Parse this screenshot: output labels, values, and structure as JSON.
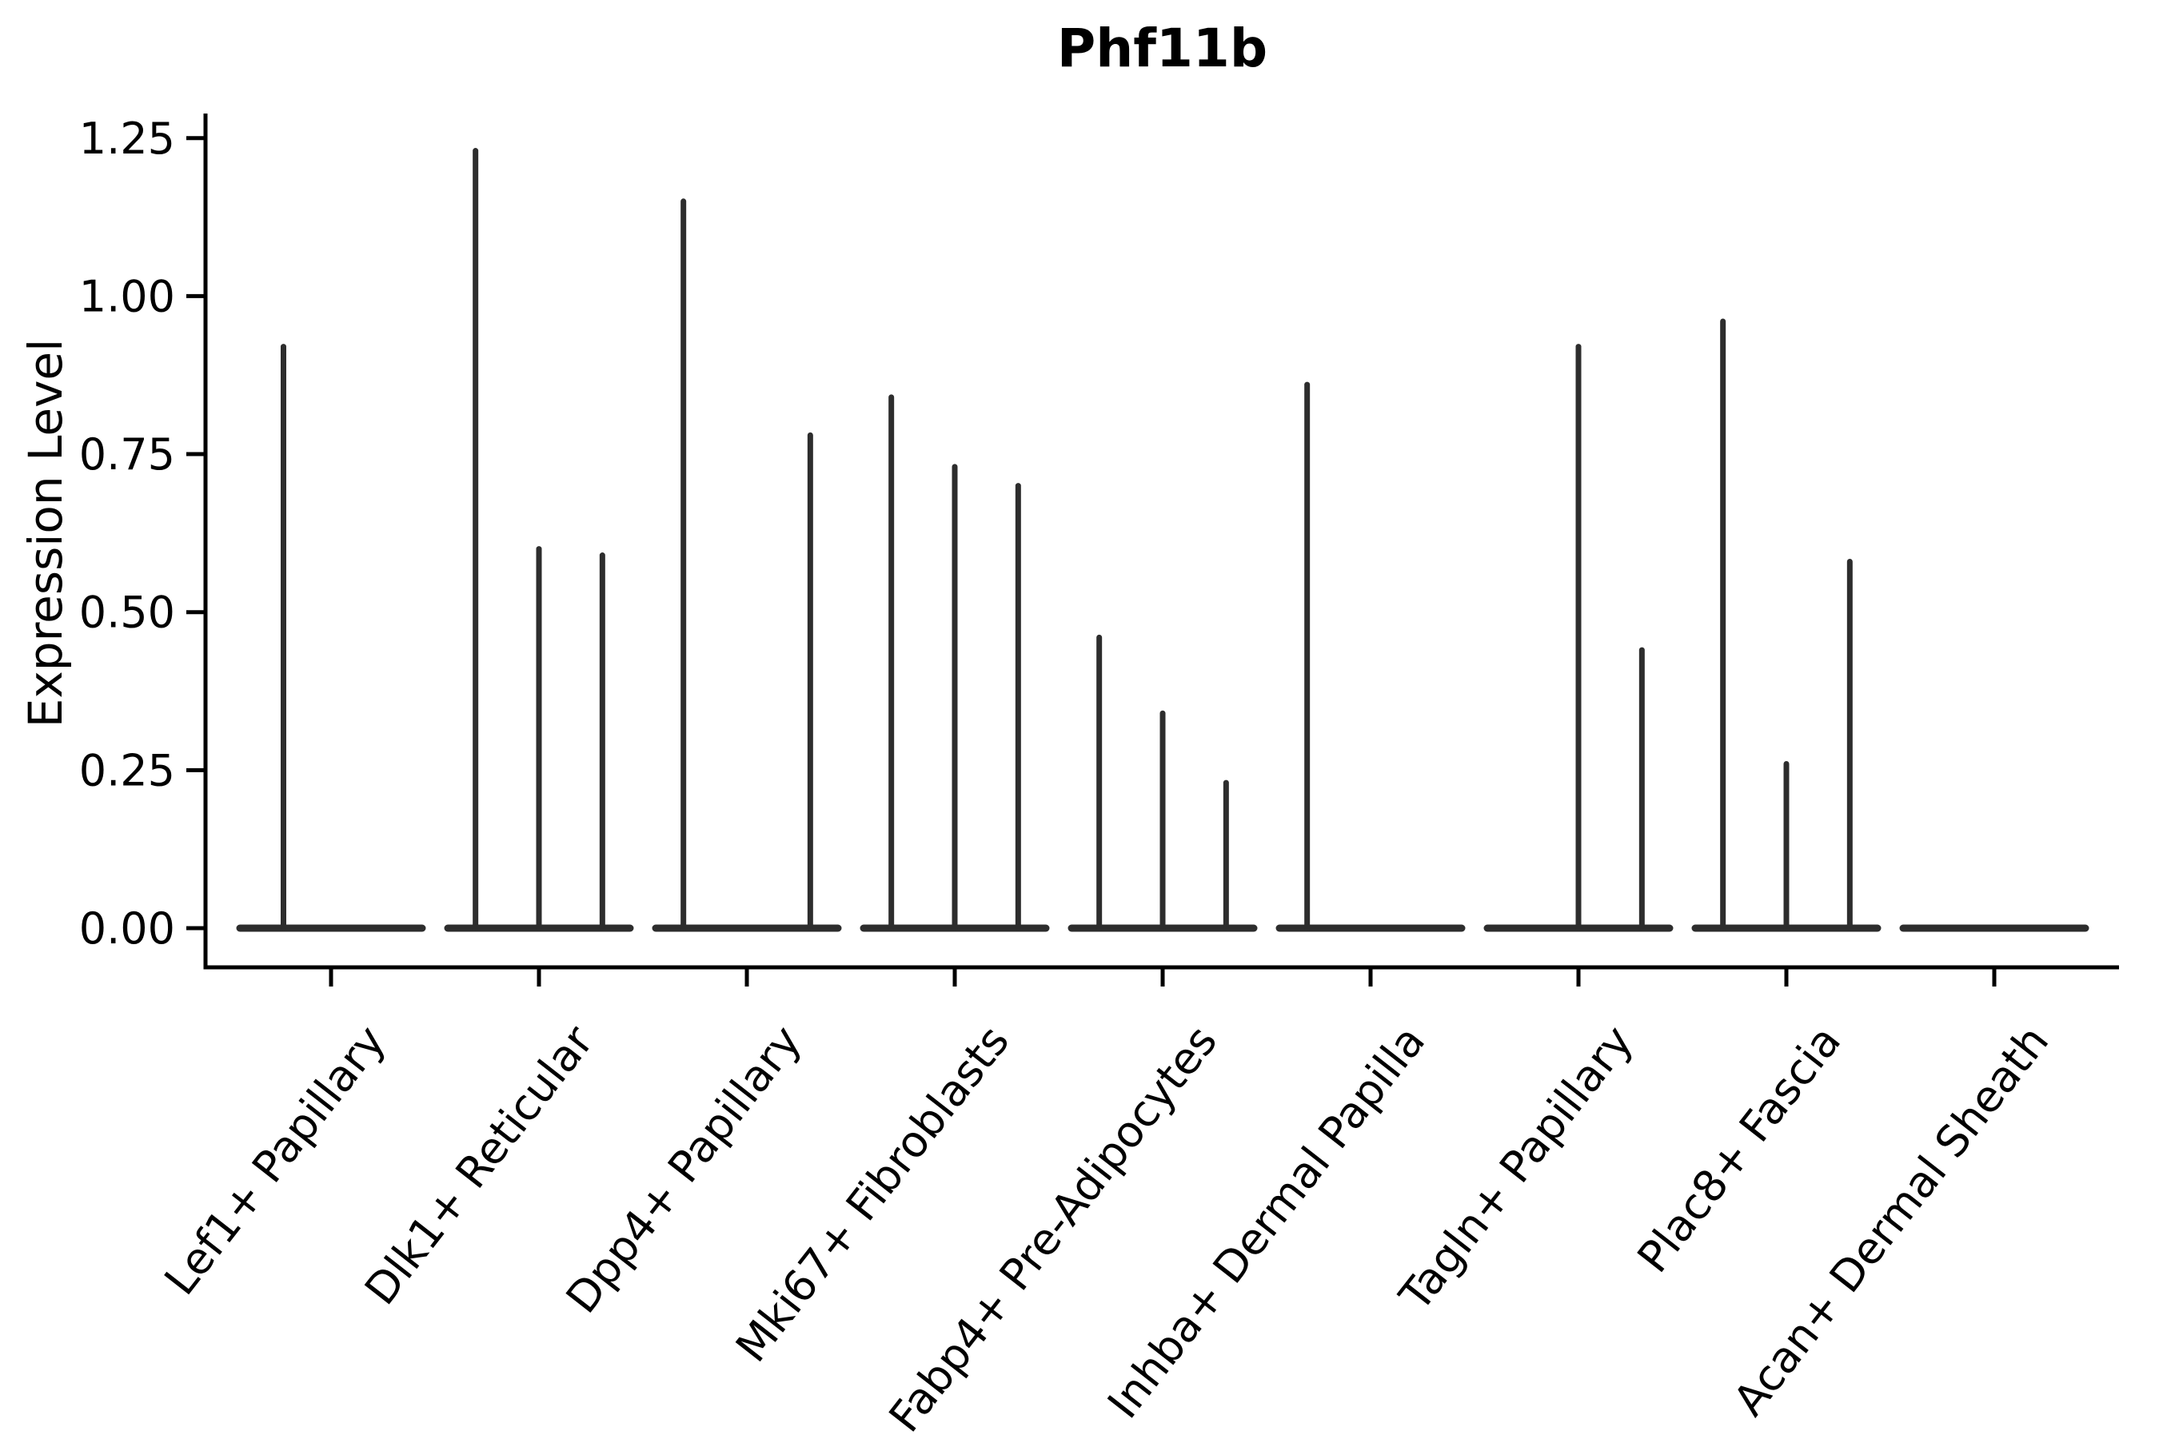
{
  "chart_data": {
    "type": "violin",
    "title": "Phf11b",
    "ylabel": "Expression Level",
    "xlabel": "",
    "grid": false,
    "legend": "none",
    "ylim": [
      -0.06,
      1.29
    ],
    "violin_color": "#2d2d2d",
    "axis_color": "#000000",
    "y_ticks": [
      {
        "v": 0.0,
        "label": "0.00"
      },
      {
        "v": 0.25,
        "label": "0.25"
      },
      {
        "v": 0.5,
        "label": "0.50"
      },
      {
        "v": 0.75,
        "label": "0.75"
      },
      {
        "v": 1.0,
        "label": "1.00"
      },
      {
        "v": 1.25,
        "label": "1.25"
      }
    ],
    "categories": [
      {
        "label": "Lef1+ Papillary",
        "slots": 2,
        "values": [
          0.92,
          0
        ]
      },
      {
        "label": "Dlk1+ Reticular",
        "slots": 3,
        "values": [
          1.23,
          0.6,
          0.59
        ]
      },
      {
        "label": "Dpp4+ Papillary",
        "slots": 3,
        "values": [
          1.15,
          0,
          0.78
        ]
      },
      {
        "label": "Mki67+ Fibroblasts",
        "slots": 3,
        "values": [
          0.84,
          0.73,
          0.7
        ]
      },
      {
        "label": "Fabp4+ Pre-Adipocytes",
        "slots": 3,
        "values": [
          0.46,
          0.34,
          0.23
        ]
      },
      {
        "label": "Inhba+ Dermal Papilla",
        "slots": 3,
        "values": [
          0.86,
          0,
          0
        ]
      },
      {
        "label": "Tagln+ Papillary",
        "slots": 3,
        "values": [
          0,
          0.92,
          0.44
        ]
      },
      {
        "label": "Plac8+ Fascia",
        "slots": 3,
        "values": [
          0.96,
          0.26,
          0.58
        ]
      },
      {
        "label": "Acan+ Dermal Sheath",
        "slots": 3,
        "values": [
          0,
          0,
          0
        ]
      }
    ]
  }
}
